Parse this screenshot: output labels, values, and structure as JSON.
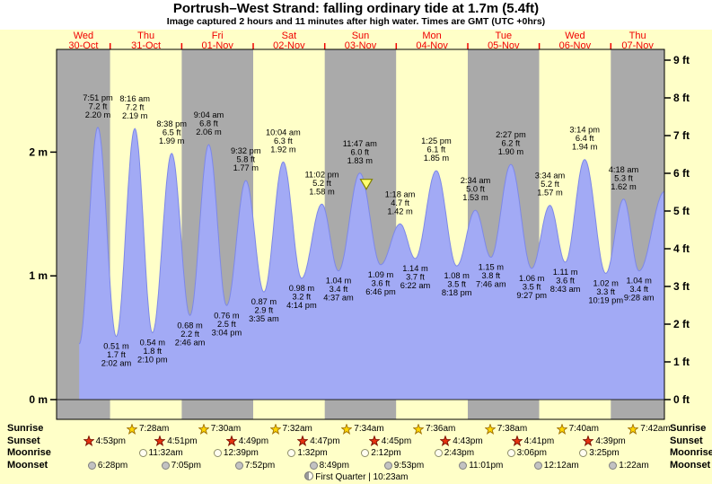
{
  "header": {
    "title": "Portrush–West Strand: falling  ordinary tide at 1.7m (5.4ft)",
    "subtitle": "Image captured 2 hours and 11 minutes after high water. Times are GMT (UTC +0hrs)"
  },
  "chart_data": {
    "type": "area",
    "name": "tide height curve",
    "title": "Portrush–West Strand: falling ordinary tide at 1.7m (5.4ft)",
    "x_hours_range": [
      6,
      210
    ],
    "y_range_m": [
      0,
      2.83
    ],
    "y_axis_left": {
      "labels": [
        "2 m",
        "1 m",
        "0 m"
      ],
      "values_m": [
        2,
        1,
        0
      ]
    },
    "y_axis_right": {
      "labels": [
        "9 ft",
        "8 ft",
        "7 ft",
        "6 ft",
        "5 ft",
        "4 ft",
        "3 ft",
        "2 ft",
        "1 ft",
        "0 ft"
      ],
      "values_ft": [
        9,
        8,
        7,
        6,
        5,
        4,
        3,
        2,
        1,
        0
      ]
    },
    "days": [
      {
        "weekday": "Wed",
        "date": "30-Oct",
        "band": "gray"
      },
      {
        "weekday": "Thu",
        "date": "31-Oct",
        "band": "yellow"
      },
      {
        "weekday": "Fri",
        "date": "01-Nov",
        "band": "gray"
      },
      {
        "weekday": "Sat",
        "date": "02-Nov",
        "band": "yellow"
      },
      {
        "weekday": "Sun",
        "date": "03-Nov",
        "band": "gray"
      },
      {
        "weekday": "Mon",
        "date": "04-Nov",
        "band": "yellow"
      },
      {
        "weekday": "Tue",
        "date": "05-Nov",
        "band": "gray"
      },
      {
        "weekday": "Wed",
        "date": "06-Nov",
        "band": "yellow"
      },
      {
        "weekday": "Thu",
        "date": "07-Nov",
        "band": "gray"
      }
    ],
    "extremes": [
      {
        "type": "high",
        "t": 19.85,
        "height_m": 2.2,
        "time": "7:51 pm",
        "ft": "7.2 ft",
        "m": "2.20 m"
      },
      {
        "type": "low",
        "t": 26.03,
        "height_m": 0.51,
        "time": "2:02 am",
        "ft": "1.7 ft",
        "m": "0.51 m"
      },
      {
        "type": "high",
        "t": 32.27,
        "height_m": 2.19,
        "time": "8:16 am",
        "ft": "7.2 ft",
        "m": "2.19 m"
      },
      {
        "type": "low",
        "t": 38.17,
        "height_m": 0.54,
        "time": "2:10 pm",
        "ft": "1.8 ft",
        "m": "0.54 m"
      },
      {
        "type": "high",
        "t": 44.63,
        "height_m": 1.99,
        "time": "8:38 pm",
        "ft": "6.5 ft",
        "m": "1.99 m"
      },
      {
        "type": "low",
        "t": 50.77,
        "height_m": 0.68,
        "time": "2:46 am",
        "ft": "2.2 ft",
        "m": "0.68 m"
      },
      {
        "type": "high",
        "t": 57.07,
        "height_m": 2.06,
        "time": "9:04 am",
        "ft": "6.8 ft",
        "m": "2.06 m"
      },
      {
        "type": "low",
        "t": 63.07,
        "height_m": 0.76,
        "time": "3:04 pm",
        "ft": "2.5 ft",
        "m": "0.76 m"
      },
      {
        "type": "high",
        "t": 69.53,
        "height_m": 1.77,
        "time": "9:32 pm",
        "ft": "5.8 ft",
        "m": "1.77 m"
      },
      {
        "type": "low",
        "t": 75.58,
        "height_m": 0.87,
        "time": "3:35 am",
        "ft": "2.9 ft",
        "m": "0.87 m"
      },
      {
        "type": "high",
        "t": 82.07,
        "height_m": 1.92,
        "time": "10:04 am",
        "ft": "6.3 ft",
        "m": "1.92 m"
      },
      {
        "type": "low",
        "t": 88.23,
        "height_m": 0.98,
        "time": "4:14 pm",
        "ft": "3.2 ft",
        "m": "0.98 m"
      },
      {
        "type": "high",
        "t": 95.03,
        "height_m": 1.58,
        "time": "11:02 pm",
        "ft": "5.2 ft",
        "m": "1.58 m"
      },
      {
        "type": "low",
        "t": 100.62,
        "height_m": 1.04,
        "time": "4:37 am",
        "ft": "3.4 ft",
        "m": "1.04 m"
      },
      {
        "type": "high",
        "t": 107.78,
        "height_m": 1.83,
        "time": "11:47 am",
        "ft": "6.0 ft",
        "m": "1.83 m"
      },
      {
        "type": "low",
        "t": 114.77,
        "height_m": 1.09,
        "time": "6:46 pm",
        "ft": "3.6 ft",
        "m": "1.09 m"
      },
      {
        "type": "high",
        "t": 121.3,
        "height_m": 1.42,
        "time": "1:18 am",
        "ft": "4.7 ft",
        "m": "1.42 m"
      },
      {
        "type": "low",
        "t": 126.37,
        "height_m": 1.14,
        "time": "6:22 am",
        "ft": "3.7 ft",
        "m": "1.14 m"
      },
      {
        "type": "high",
        "t": 133.42,
        "height_m": 1.85,
        "time": "1:25 pm",
        "ft": "6.1 ft",
        "m": "1.85 m"
      },
      {
        "type": "low",
        "t": 140.3,
        "height_m": 1.08,
        "time": "8:18 pm",
        "ft": "3.5 ft",
        "m": "1.08 m"
      },
      {
        "type": "high",
        "t": 146.57,
        "height_m": 1.53,
        "time": "2:34 am",
        "ft": "5.0 ft",
        "m": "1.53 m"
      },
      {
        "type": "low",
        "t": 151.77,
        "height_m": 1.15,
        "time": "7:46 am",
        "ft": "3.8 ft",
        "m": "1.15 m"
      },
      {
        "type": "high",
        "t": 158.45,
        "height_m": 1.9,
        "time": "2:27 pm",
        "ft": "6.2 ft",
        "m": "1.90 m"
      },
      {
        "type": "low",
        "t": 165.45,
        "height_m": 1.06,
        "time": "9:27 pm",
        "ft": "3.5 ft",
        "m": "1.06 m"
      },
      {
        "type": "high",
        "t": 171.57,
        "height_m": 1.57,
        "time": "3:34 am",
        "ft": "5.2 ft",
        "m": "1.57 m"
      },
      {
        "type": "low",
        "t": 176.72,
        "height_m": 1.11,
        "time": "8:43 am",
        "ft": "3.6 ft",
        "m": "1.11 m"
      },
      {
        "type": "high",
        "t": 183.23,
        "height_m": 1.94,
        "time": "3:14 pm",
        "ft": "6.4 ft",
        "m": "1.94 m"
      },
      {
        "type": "low",
        "t": 190.32,
        "height_m": 1.02,
        "time": "10:19 pm",
        "ft": "3.3 ft",
        "m": "1.02 m"
      },
      {
        "type": "high",
        "t": 196.3,
        "height_m": 1.62,
        "time": "4:18 am",
        "ft": "5.3 ft",
        "m": "1.62 m"
      },
      {
        "type": "low",
        "t": 201.47,
        "height_m": 1.04,
        "time": "9:28 am",
        "ft": "3.4 ft",
        "m": "1.04 m"
      }
    ],
    "curve_start": {
      "t": 13.6,
      "height_m": 0.45
    },
    "curve_end": {
      "t": 210,
      "height_m": 1.68
    },
    "current_marker": {
      "t": 109.97,
      "height_m": 1.7
    }
  },
  "astro": {
    "rows": [
      {
        "name": "sunrise",
        "label": "Sunrise",
        "icon": "sunrise-star-icon",
        "events": [
          {
            "t": 31.47,
            "time": "7:28am"
          },
          {
            "t": 55.5,
            "time": "7:30am"
          },
          {
            "t": 79.53,
            "time": "7:32am"
          },
          {
            "t": 103.57,
            "time": "7:34am"
          },
          {
            "t": 127.6,
            "time": "7:36am"
          },
          {
            "t": 151.63,
            "time": "7:38am"
          },
          {
            "t": 175.67,
            "time": "7:40am"
          },
          {
            "t": 199.7,
            "time": "7:42am"
          }
        ]
      },
      {
        "name": "sunset",
        "label": "Sunset",
        "icon": "sunset-star-icon",
        "events": [
          {
            "t": 16.88,
            "time": "4:53pm"
          },
          {
            "t": 40.85,
            "time": "4:51pm"
          },
          {
            "t": 64.82,
            "time": "4:49pm"
          },
          {
            "t": 88.78,
            "time": "4:47pm"
          },
          {
            "t": 112.75,
            "time": "4:45pm"
          },
          {
            "t": 136.72,
            "time": "4:43pm"
          },
          {
            "t": 160.68,
            "time": "4:41pm"
          },
          {
            "t": 184.65,
            "time": "4:39pm"
          }
        ]
      },
      {
        "name": "moonrise",
        "label": "Moonrise",
        "icon": "moonrise-icon",
        "events": [
          {
            "t": 35.53,
            "time": "11:32am"
          },
          {
            "t": 60.65,
            "time": "12:39pm"
          },
          {
            "t": 85.53,
            "time": "1:32pm"
          },
          {
            "t": 110.2,
            "time": "2:12pm"
          },
          {
            "t": 134.72,
            "time": "2:43pm"
          },
          {
            "t": 159.1,
            "time": "3:06pm"
          },
          {
            "t": 183.42,
            "time": "3:25pm"
          }
        ]
      },
      {
        "name": "moonset",
        "label": "Moonset",
        "icon": "moonset-icon",
        "events": [
          {
            "t": 18.47,
            "time": "6:28pm"
          },
          {
            "t": 43.08,
            "time": "7:05pm"
          },
          {
            "t": 67.87,
            "time": "7:52pm"
          },
          {
            "t": 92.82,
            "time": "8:49pm"
          },
          {
            "t": 117.88,
            "time": "9:53pm"
          },
          {
            "t": 143.02,
            "time": "11:01pm"
          },
          {
            "t": 168.2,
            "time": "12:12am"
          },
          {
            "t": 193.37,
            "time": "1:22am"
          }
        ]
      }
    ],
    "footer": {
      "icon": "first-quarter-moon-icon",
      "text": "First Quarter | 10:23am"
    }
  },
  "colors": {
    "page_bg": "#ffffc8",
    "header_bg": "#ffffff",
    "band_gray": "#aaaaaa",
    "band_yellow": "#ffffc8",
    "tide_fill": "#a2aaf5",
    "tide_stroke": "#7d88e8",
    "day_label_color": "#f00000",
    "marker_fill": "#ffff70",
    "marker_stroke": "#808000"
  }
}
